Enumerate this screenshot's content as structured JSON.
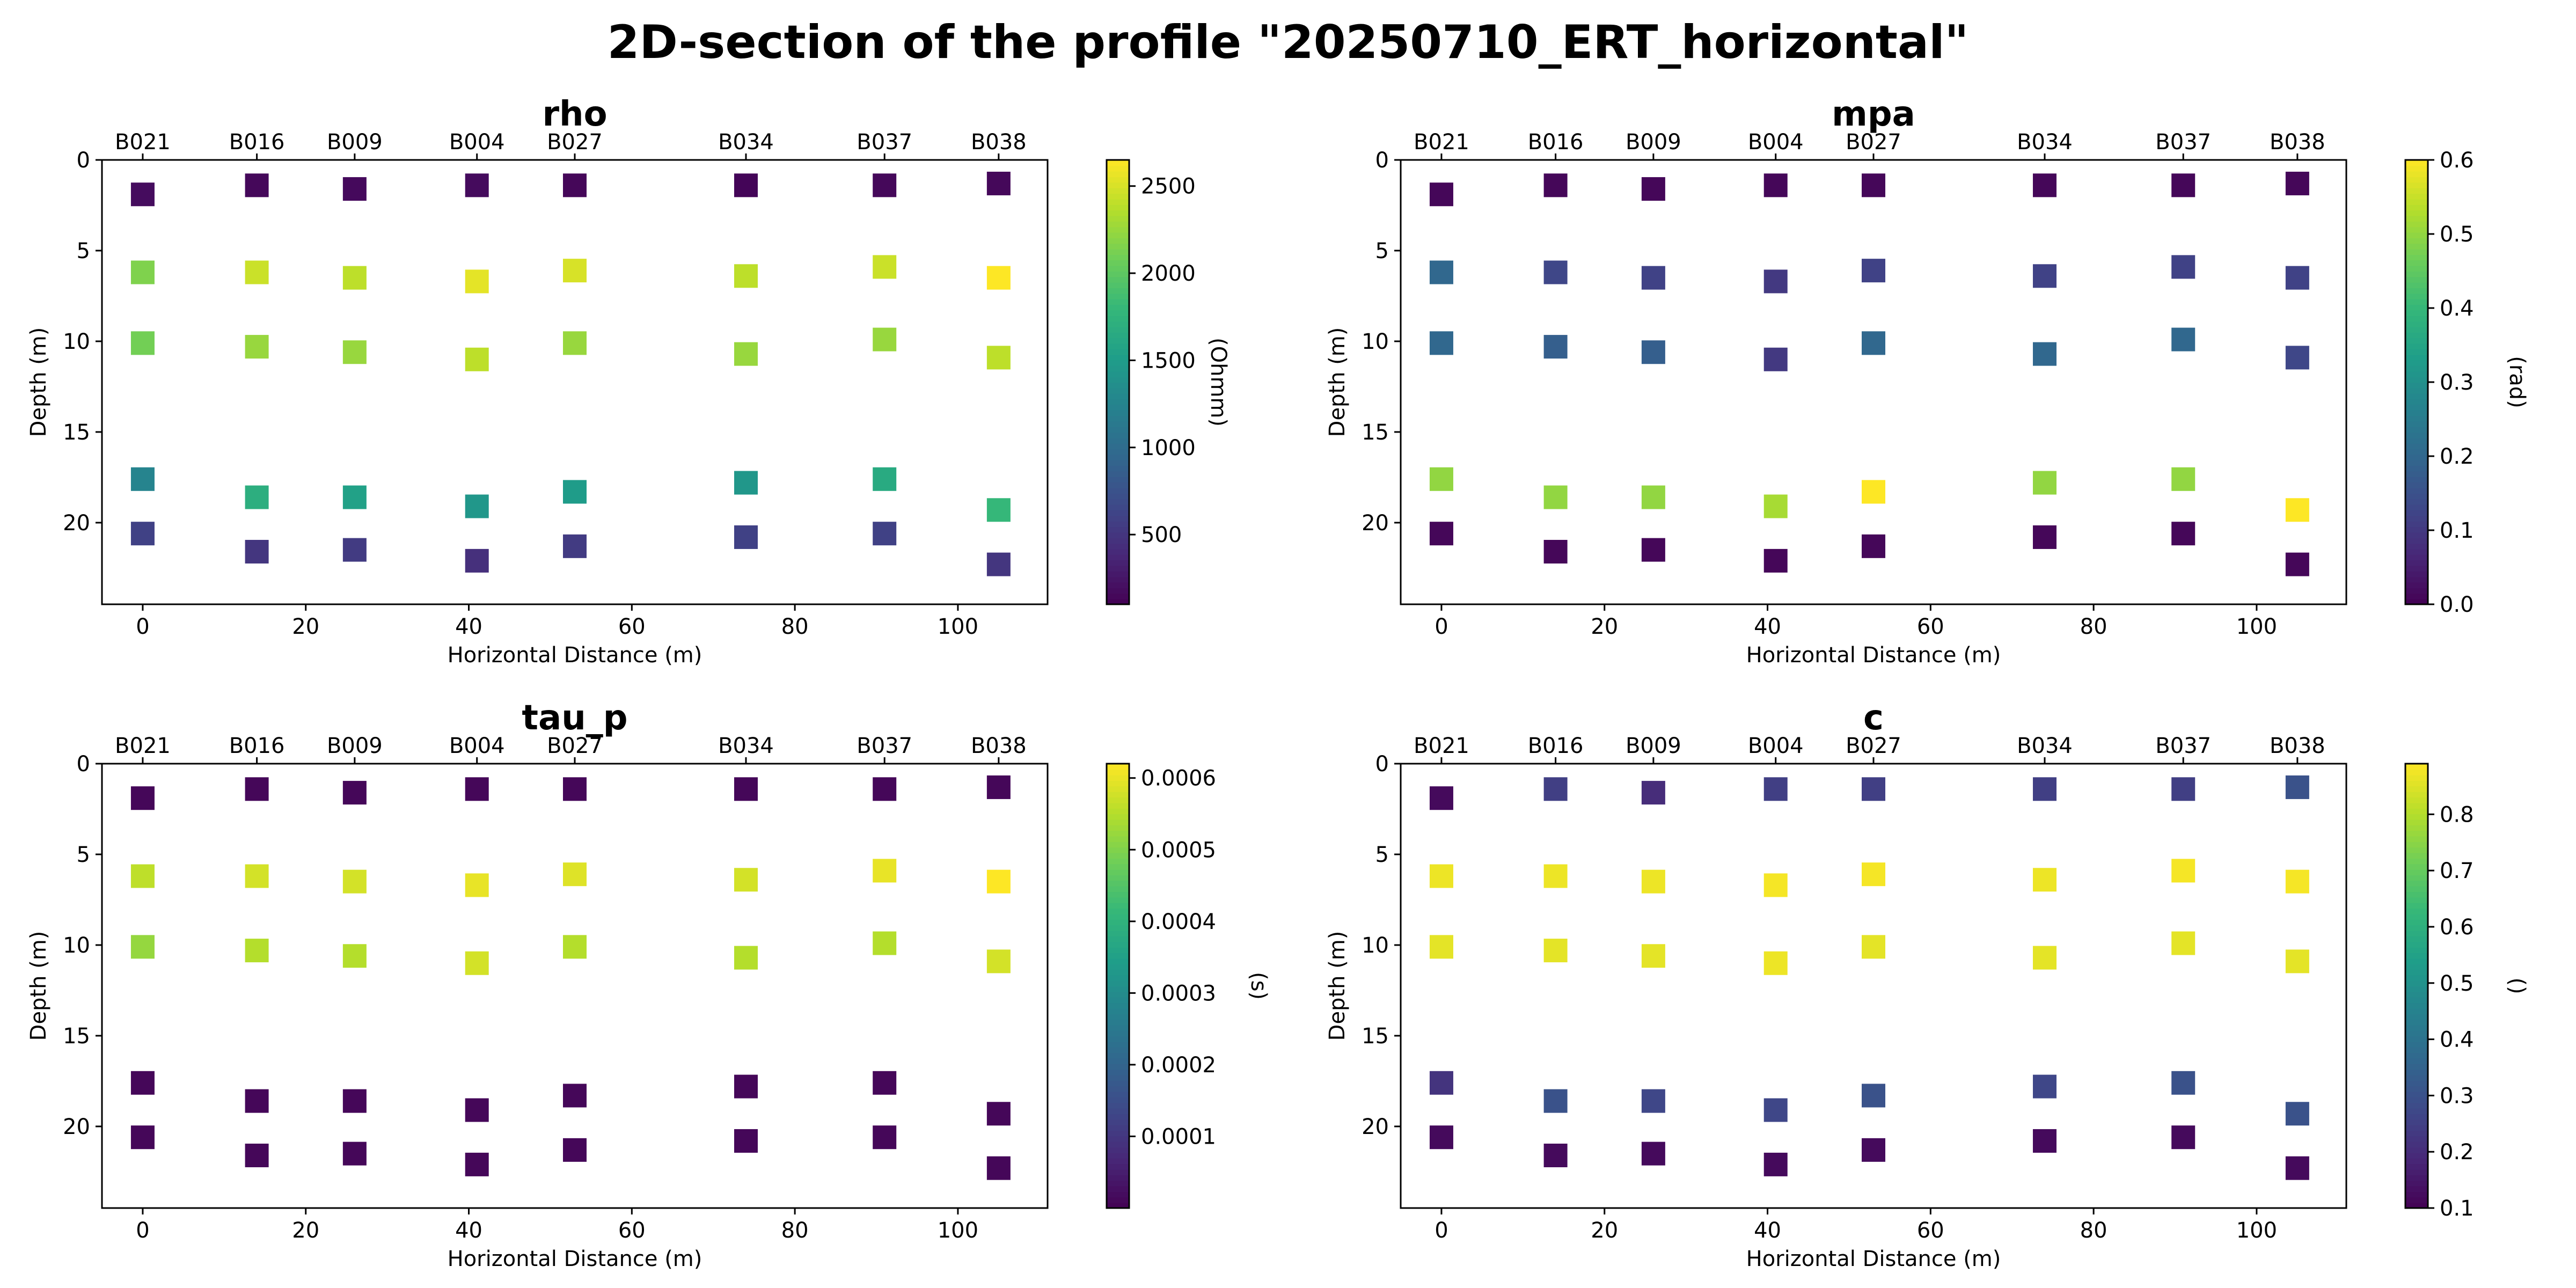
{
  "figure": {
    "title": "2D-section of the profile \"20250710_ERT_horizontal\""
  },
  "colormap": [
    "#440154",
    "#482878",
    "#3e4989",
    "#31688e",
    "#26828e",
    "#1f9e89",
    "#35b779",
    "#6ece58",
    "#b5de2b",
    "#fde725"
  ],
  "borehole_labels": [
    "B021",
    "B016",
    "B009",
    "B004",
    "B027",
    "B034",
    "B037",
    "B038"
  ],
  "borehole_x": [
    0,
    14,
    26,
    41,
    53,
    74,
    91,
    105
  ],
  "chart_data": [
    {
      "type": "scatter",
      "title": "rho",
      "xlabel": "Horizontal Distance (m)",
      "ylabel": "Depth (m)",
      "colorbar_label": "(Ohmm)",
      "xlim": [
        -5,
        111
      ],
      "ylim": [
        24.5,
        0
      ],
      "xticks": [
        0,
        20,
        40,
        60,
        80,
        100
      ],
      "yticks": [
        0,
        5,
        10,
        15,
        20
      ],
      "clim": [
        100,
        2650
      ],
      "cticks": [
        500,
        1000,
        1500,
        2000,
        2500
      ],
      "marker": "square",
      "points": [
        {
          "x": 0,
          "y": 1.9,
          "value": 180
        },
        {
          "x": 0,
          "y": 6.2,
          "value": 2150
        },
        {
          "x": 0,
          "y": 10.1,
          "value": 2100
        },
        {
          "x": 0,
          "y": 17.6,
          "value": 1250
        },
        {
          "x": 0,
          "y": 20.6,
          "value": 600
        },
        {
          "x": 14,
          "y": 1.4,
          "value": 150
        },
        {
          "x": 14,
          "y": 6.2,
          "value": 2450
        },
        {
          "x": 14,
          "y": 10.3,
          "value": 2250
        },
        {
          "x": 14,
          "y": 18.6,
          "value": 1700
        },
        {
          "x": 14,
          "y": 21.6,
          "value": 500
        },
        {
          "x": 26,
          "y": 1.6,
          "value": 160
        },
        {
          "x": 26,
          "y": 6.5,
          "value": 2400
        },
        {
          "x": 26,
          "y": 10.6,
          "value": 2250
        },
        {
          "x": 26,
          "y": 18.6,
          "value": 1550
        },
        {
          "x": 26,
          "y": 21.5,
          "value": 550
        },
        {
          "x": 41,
          "y": 1.4,
          "value": 170
        },
        {
          "x": 41,
          "y": 6.7,
          "value": 2550
        },
        {
          "x": 41,
          "y": 11.0,
          "value": 2400
        },
        {
          "x": 41,
          "y": 19.1,
          "value": 1450
        },
        {
          "x": 41,
          "y": 22.1,
          "value": 450
        },
        {
          "x": 53,
          "y": 1.4,
          "value": 140
        },
        {
          "x": 53,
          "y": 6.1,
          "value": 2500
        },
        {
          "x": 53,
          "y": 10.1,
          "value": 2250
        },
        {
          "x": 53,
          "y": 18.3,
          "value": 1500
        },
        {
          "x": 53,
          "y": 21.3,
          "value": 550
        },
        {
          "x": 74,
          "y": 1.4,
          "value": 130
        },
        {
          "x": 74,
          "y": 6.4,
          "value": 2400
        },
        {
          "x": 74,
          "y": 10.7,
          "value": 2250
        },
        {
          "x": 74,
          "y": 17.8,
          "value": 1450
        },
        {
          "x": 74,
          "y": 20.8,
          "value": 600
        },
        {
          "x": 91,
          "y": 1.4,
          "value": 150
        },
        {
          "x": 91,
          "y": 5.9,
          "value": 2450
        },
        {
          "x": 91,
          "y": 9.9,
          "value": 2250
        },
        {
          "x": 91,
          "y": 17.6,
          "value": 1650
        },
        {
          "x": 91,
          "y": 20.6,
          "value": 600
        },
        {
          "x": 105,
          "y": 1.3,
          "value": 150
        },
        {
          "x": 105,
          "y": 6.5,
          "value": 2650
        },
        {
          "x": 105,
          "y": 10.9,
          "value": 2400
        },
        {
          "x": 105,
          "y": 19.3,
          "value": 1800
        },
        {
          "x": 105,
          "y": 22.3,
          "value": 500
        }
      ]
    },
    {
      "type": "scatter",
      "title": "mpa",
      "xlabel": "Horizontal Distance (m)",
      "ylabel": "Depth (m)",
      "colorbar_label": "(rad)",
      "xlim": [
        -5,
        111
      ],
      "ylim": [
        24.5,
        0
      ],
      "xticks": [
        0,
        20,
        40,
        60,
        80,
        100
      ],
      "yticks": [
        0,
        5,
        10,
        15,
        20
      ],
      "clim": [
        0.0,
        0.6
      ],
      "cticks": [
        0.0,
        0.1,
        0.2,
        0.3,
        0.4,
        0.5,
        0.6
      ],
      "marker": "square",
      "points": [
        {
          "x": 0,
          "y": 1.9,
          "value": 0.01
        },
        {
          "x": 0,
          "y": 6.2,
          "value": 0.2
        },
        {
          "x": 0,
          "y": 10.1,
          "value": 0.2
        },
        {
          "x": 0,
          "y": 17.6,
          "value": 0.5
        },
        {
          "x": 0,
          "y": 20.6,
          "value": 0.01
        },
        {
          "x": 14,
          "y": 1.4,
          "value": 0.01
        },
        {
          "x": 14,
          "y": 6.2,
          "value": 0.13
        },
        {
          "x": 14,
          "y": 10.3,
          "value": 0.18
        },
        {
          "x": 14,
          "y": 18.6,
          "value": 0.5
        },
        {
          "x": 14,
          "y": 21.6,
          "value": 0.01
        },
        {
          "x": 26,
          "y": 1.6,
          "value": 0.01
        },
        {
          "x": 26,
          "y": 6.5,
          "value": 0.12
        },
        {
          "x": 26,
          "y": 10.6,
          "value": 0.18
        },
        {
          "x": 26,
          "y": 18.6,
          "value": 0.5
        },
        {
          "x": 26,
          "y": 21.5,
          "value": 0.01
        },
        {
          "x": 41,
          "y": 1.4,
          "value": 0.01
        },
        {
          "x": 41,
          "y": 6.7,
          "value": 0.1
        },
        {
          "x": 41,
          "y": 11.0,
          "value": 0.1
        },
        {
          "x": 41,
          "y": 19.1,
          "value": 0.52
        },
        {
          "x": 41,
          "y": 22.1,
          "value": 0.01
        },
        {
          "x": 53,
          "y": 1.4,
          "value": 0.01
        },
        {
          "x": 53,
          "y": 6.1,
          "value": 0.12
        },
        {
          "x": 53,
          "y": 10.1,
          "value": 0.2
        },
        {
          "x": 53,
          "y": 18.3,
          "value": 0.6
        },
        {
          "x": 53,
          "y": 21.3,
          "value": 0.01
        },
        {
          "x": 74,
          "y": 1.4,
          "value": 0.01
        },
        {
          "x": 74,
          "y": 6.4,
          "value": 0.12
        },
        {
          "x": 74,
          "y": 10.7,
          "value": 0.2
        },
        {
          "x": 74,
          "y": 17.8,
          "value": 0.5
        },
        {
          "x": 74,
          "y": 20.8,
          "value": 0.01
        },
        {
          "x": 91,
          "y": 1.4,
          "value": 0.01
        },
        {
          "x": 91,
          "y": 5.9,
          "value": 0.12
        },
        {
          "x": 91,
          "y": 9.9,
          "value": 0.2
        },
        {
          "x": 91,
          "y": 17.6,
          "value": 0.5
        },
        {
          "x": 91,
          "y": 20.6,
          "value": 0.01
        },
        {
          "x": 105,
          "y": 1.3,
          "value": 0.01
        },
        {
          "x": 105,
          "y": 6.5,
          "value": 0.12
        },
        {
          "x": 105,
          "y": 10.9,
          "value": 0.13
        },
        {
          "x": 105,
          "y": 19.3,
          "value": 0.6
        },
        {
          "x": 105,
          "y": 22.3,
          "value": 0.01
        }
      ]
    },
    {
      "type": "scatter",
      "title": "tau_p",
      "xlabel": "Horizontal Distance (m)",
      "ylabel": "Depth (m)",
      "colorbar_label": "(s)",
      "xlim": [
        -5,
        111
      ],
      "ylim": [
        24.5,
        0
      ],
      "xticks": [
        0,
        20,
        40,
        60,
        80,
        100
      ],
      "yticks": [
        0,
        5,
        10,
        15,
        20
      ],
      "clim": [
        0.0,
        0.00062
      ],
      "cticks": [
        "0.0001",
        "0.0002",
        "0.0003",
        "0.0004",
        "0.0005",
        "0.0006"
      ],
      "marker": "square",
      "points": [
        {
          "x": 0,
          "y": 1.9,
          "value": 1e-05
        },
        {
          "x": 0,
          "y": 6.2,
          "value": 0.00056
        },
        {
          "x": 0,
          "y": 10.1,
          "value": 0.00052
        },
        {
          "x": 0,
          "y": 17.6,
          "value": 1e-05
        },
        {
          "x": 0,
          "y": 20.6,
          "value": 1e-05
        },
        {
          "x": 14,
          "y": 1.4,
          "value": 1e-05
        },
        {
          "x": 14,
          "y": 6.2,
          "value": 0.00058
        },
        {
          "x": 14,
          "y": 10.3,
          "value": 0.00055
        },
        {
          "x": 14,
          "y": 18.6,
          "value": 1e-05
        },
        {
          "x": 14,
          "y": 21.6,
          "value": 1e-05
        },
        {
          "x": 26,
          "y": 1.6,
          "value": 1e-05
        },
        {
          "x": 26,
          "y": 6.5,
          "value": 0.00058
        },
        {
          "x": 26,
          "y": 10.6,
          "value": 0.00055
        },
        {
          "x": 26,
          "y": 18.6,
          "value": 1e-05
        },
        {
          "x": 26,
          "y": 21.5,
          "value": 1e-05
        },
        {
          "x": 41,
          "y": 1.4,
          "value": 1e-05
        },
        {
          "x": 41,
          "y": 6.7,
          "value": 0.0006
        },
        {
          "x": 41,
          "y": 11.0,
          "value": 0.00058
        },
        {
          "x": 41,
          "y": 19.1,
          "value": 1e-05
        },
        {
          "x": 41,
          "y": 22.1,
          "value": 1e-05
        },
        {
          "x": 53,
          "y": 1.4,
          "value": 1e-05
        },
        {
          "x": 53,
          "y": 6.1,
          "value": 0.00059
        },
        {
          "x": 53,
          "y": 10.1,
          "value": 0.00055
        },
        {
          "x": 53,
          "y": 18.3,
          "value": 1e-05
        },
        {
          "x": 53,
          "y": 21.3,
          "value": 1e-05
        },
        {
          "x": 74,
          "y": 1.4,
          "value": 1e-05
        },
        {
          "x": 74,
          "y": 6.4,
          "value": 0.00058
        },
        {
          "x": 74,
          "y": 10.7,
          "value": 0.00055
        },
        {
          "x": 74,
          "y": 17.8,
          "value": 1e-05
        },
        {
          "x": 74,
          "y": 20.8,
          "value": 1e-05
        },
        {
          "x": 91,
          "y": 1.4,
          "value": 1e-05
        },
        {
          "x": 91,
          "y": 5.9,
          "value": 0.0006
        },
        {
          "x": 91,
          "y": 9.9,
          "value": 0.00055
        },
        {
          "x": 91,
          "y": 17.6,
          "value": 1e-05
        },
        {
          "x": 91,
          "y": 20.6,
          "value": 1e-05
        },
        {
          "x": 105,
          "y": 1.3,
          "value": 1e-05
        },
        {
          "x": 105,
          "y": 6.5,
          "value": 0.00062
        },
        {
          "x": 105,
          "y": 10.9,
          "value": 0.00058
        },
        {
          "x": 105,
          "y": 19.3,
          "value": 1e-05
        },
        {
          "x": 105,
          "y": 22.3,
          "value": 1e-05
        }
      ]
    },
    {
      "type": "scatter",
      "title": "c",
      "xlabel": "Horizontal Distance (m)",
      "ylabel": "Depth (m)",
      "colorbar_label": "()",
      "xlim": [
        -5,
        111
      ],
      "ylim": [
        24.5,
        0
      ],
      "xticks": [
        0,
        20,
        40,
        60,
        80,
        100
      ],
      "yticks": [
        0,
        5,
        10,
        15,
        20
      ],
      "clim": [
        0.1,
        0.89
      ],
      "cticks": [
        0.1,
        0.2,
        0.3,
        0.4,
        0.5,
        0.6,
        0.7,
        0.8
      ],
      "marker": "square",
      "points": [
        {
          "x": 0,
          "y": 1.9,
          "value": 0.12
        },
        {
          "x": 0,
          "y": 6.2,
          "value": 0.87
        },
        {
          "x": 0,
          "y": 10.1,
          "value": 0.86
        },
        {
          "x": 0,
          "y": 17.6,
          "value": 0.22
        },
        {
          "x": 0,
          "y": 20.6,
          "value": 0.12
        },
        {
          "x": 14,
          "y": 1.4,
          "value": 0.25
        },
        {
          "x": 14,
          "y": 6.2,
          "value": 0.87
        },
        {
          "x": 14,
          "y": 10.3,
          "value": 0.86
        },
        {
          "x": 14,
          "y": 18.6,
          "value": 0.3
        },
        {
          "x": 14,
          "y": 21.6,
          "value": 0.12
        },
        {
          "x": 26,
          "y": 1.6,
          "value": 0.2
        },
        {
          "x": 26,
          "y": 6.5,
          "value": 0.87
        },
        {
          "x": 26,
          "y": 10.6,
          "value": 0.86
        },
        {
          "x": 26,
          "y": 18.6,
          "value": 0.27
        },
        {
          "x": 26,
          "y": 21.5,
          "value": 0.12
        },
        {
          "x": 41,
          "y": 1.4,
          "value": 0.25
        },
        {
          "x": 41,
          "y": 6.7,
          "value": 0.88
        },
        {
          "x": 41,
          "y": 11.0,
          "value": 0.87
        },
        {
          "x": 41,
          "y": 19.1,
          "value": 0.27
        },
        {
          "x": 41,
          "y": 22.1,
          "value": 0.12
        },
        {
          "x": 53,
          "y": 1.4,
          "value": 0.25
        },
        {
          "x": 53,
          "y": 6.1,
          "value": 0.88
        },
        {
          "x": 53,
          "y": 10.1,
          "value": 0.86
        },
        {
          "x": 53,
          "y": 18.3,
          "value": 0.3
        },
        {
          "x": 53,
          "y": 21.3,
          "value": 0.12
        },
        {
          "x": 74,
          "y": 1.4,
          "value": 0.25
        },
        {
          "x": 74,
          "y": 6.4,
          "value": 0.87
        },
        {
          "x": 74,
          "y": 10.7,
          "value": 0.86
        },
        {
          "x": 74,
          "y": 17.8,
          "value": 0.27
        },
        {
          "x": 74,
          "y": 20.8,
          "value": 0.12
        },
        {
          "x": 91,
          "y": 1.4,
          "value": 0.25
        },
        {
          "x": 91,
          "y": 5.9,
          "value": 0.88
        },
        {
          "x": 91,
          "y": 9.9,
          "value": 0.86
        },
        {
          "x": 91,
          "y": 17.6,
          "value": 0.3
        },
        {
          "x": 91,
          "y": 20.6,
          "value": 0.12
        },
        {
          "x": 105,
          "y": 1.3,
          "value": 0.3
        },
        {
          "x": 105,
          "y": 6.5,
          "value": 0.88
        },
        {
          "x": 105,
          "y": 10.9,
          "value": 0.86
        },
        {
          "x": 105,
          "y": 19.3,
          "value": 0.3
        },
        {
          "x": 105,
          "y": 22.3,
          "value": 0.12
        }
      ]
    }
  ]
}
